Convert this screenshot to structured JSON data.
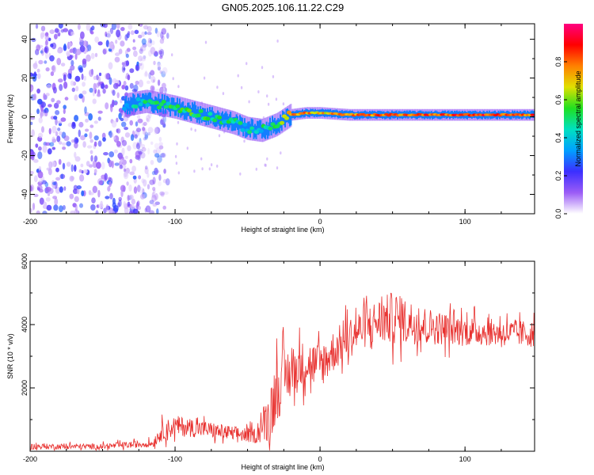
{
  "figure": {
    "title": "GN05.2025.106.11.22.C29"
  },
  "colors": {
    "line": "#e8302e",
    "axis": "#000000",
    "colorbar_stops": [
      "#ffffff",
      "#9b5cf6",
      "#3b2fff",
      "#00a0ff",
      "#00e0c0",
      "#20e020",
      "#e0e000",
      "#ff8000",
      "#ff0000",
      "#ff0080"
    ]
  },
  "chart_data": [
    {
      "type": "heatmap",
      "title": "GN05.2025.106.11.22.C29",
      "xlabel": "Height of straight line (km)",
      "ylabel": "Frequency (Hz)",
      "xlim": [
        -200,
        148
      ],
      "ylim": [
        -50,
        48
      ],
      "xticks": [
        -200,
        -100,
        0,
        100
      ],
      "xtick_labels": [
        "-200",
        "-100",
        "0",
        "100"
      ],
      "yticks": [
        -40,
        -20,
        0,
        20,
        40
      ],
      "ytick_labels": [
        "-40",
        "-20",
        "0",
        "20",
        "40"
      ],
      "colorbar": {
        "label": "Normalized spectral amplitude",
        "range": [
          0,
          1
        ],
        "ticks": [
          0.0,
          0.2,
          0.4,
          0.6,
          0.8
        ],
        "tick_labels": [
          "0.0",
          "0.2",
          "0.4",
          "0.6",
          "0.8"
        ]
      },
      "ridge": {
        "description_points_height_km": [
          -135,
          -120,
          -100,
          -80,
          -60,
          -50,
          -40,
          -30,
          -20,
          -10,
          0,
          20,
          50,
          100,
          148
        ],
        "center_frequency_hz": [
          6,
          8,
          5,
          1,
          -3,
          -6,
          -7,
          -4,
          1,
          2,
          2,
          1,
          1,
          1,
          1
        ],
        "amplitude": [
          0.35,
          0.45,
          0.5,
          0.5,
          0.45,
          0.4,
          0.45,
          0.55,
          0.8,
          0.75,
          0.7,
          0.75,
          0.8,
          0.85,
          0.8
        ]
      },
      "noise_region_km": [
        -200,
        -115
      ]
    },
    {
      "type": "line",
      "xlabel": "Height of straight line (km)",
      "ylabel": "SNR (10 * v/v)",
      "xlim": [
        -200,
        148
      ],
      "ylim": [
        0,
        6000
      ],
      "xticks": [
        -200,
        -100,
        0,
        100
      ],
      "xtick_labels": [
        "-200",
        "-100",
        "0",
        "100"
      ],
      "yticks": [
        2000,
        4000,
        6000
      ],
      "ytick_labels": [
        "2000",
        "4000",
        "6000"
      ],
      "series": [
        {
          "name": "SNR",
          "trend_x": [
            -200,
            -150,
            -115,
            -110,
            -100,
            -80,
            -60,
            -45,
            -35,
            -30,
            -25,
            -20,
            -10,
            0,
            10,
            20,
            30,
            40,
            50,
            60,
            80,
            100,
            120,
            148
          ],
          "trend_y": [
            150,
            150,
            250,
            600,
            800,
            700,
            550,
            500,
            1100,
            2000,
            2300,
            2500,
            2800,
            2700,
            3200,
            3600,
            3900,
            4100,
            4200,
            4100,
            3900,
            3800,
            3750,
            3700
          ],
          "spread": [
            150,
            150,
            200,
            500,
            550,
            450,
            400,
            400,
            1400,
            1800,
            1600,
            1400,
            1200,
            1200,
            1100,
            1100,
            1100,
            1200,
            1400,
            1200,
            900,
            800,
            700,
            700
          ]
        }
      ]
    }
  ]
}
